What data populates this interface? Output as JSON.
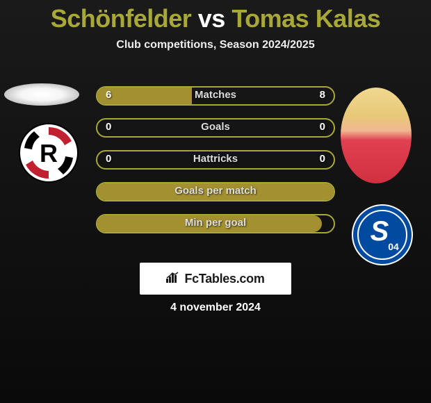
{
  "title_parts": {
    "player1": "Schönfelder",
    "vs": "vs",
    "player2": "Tomas Kalas"
  },
  "title_colors": {
    "player1": "#a8a838",
    "vs": "#ffffff",
    "player2": "#a8a838"
  },
  "subtitle": "Club competitions, Season 2024/2025",
  "date": "4 november 2024",
  "brand": "FcTables.com",
  "colors": {
    "accent": "#a8a838",
    "accent_fill": "#a39030",
    "bg_dark": "#0a0a0a",
    "label": "#dddddd",
    "value": "#ffffff"
  },
  "bars": [
    {
      "label": "Matches",
      "left": "6",
      "right": "8",
      "left_pct": 40,
      "right_pct": 0,
      "fill_color": "#a39030"
    },
    {
      "label": "Goals",
      "left": "0",
      "right": "0",
      "left_pct": 0,
      "right_pct": 0,
      "fill_color": "#a39030"
    },
    {
      "label": "Hattricks",
      "left": "0",
      "right": "0",
      "left_pct": 0,
      "right_pct": 0,
      "fill_color": "#a39030"
    },
    {
      "label": "Goals per match",
      "left": "",
      "right": "",
      "left_pct": 100,
      "right_pct": 0,
      "fill_color": "#a39030"
    },
    {
      "label": "Min per goal",
      "left": "",
      "right": "",
      "left_pct": 95,
      "right_pct": 0,
      "fill_color": "#a39030"
    }
  ],
  "border_color": "#a8a838",
  "club_left": {
    "bg": "#ffffff",
    "letter": "R",
    "letter_color": "#000000",
    "accent": "#c02030"
  },
  "club_right": {
    "bg": "#004a9f",
    "letter": "S",
    "letter_color": "#ffffff",
    "accent": "#ffffff",
    "sub": "04"
  }
}
